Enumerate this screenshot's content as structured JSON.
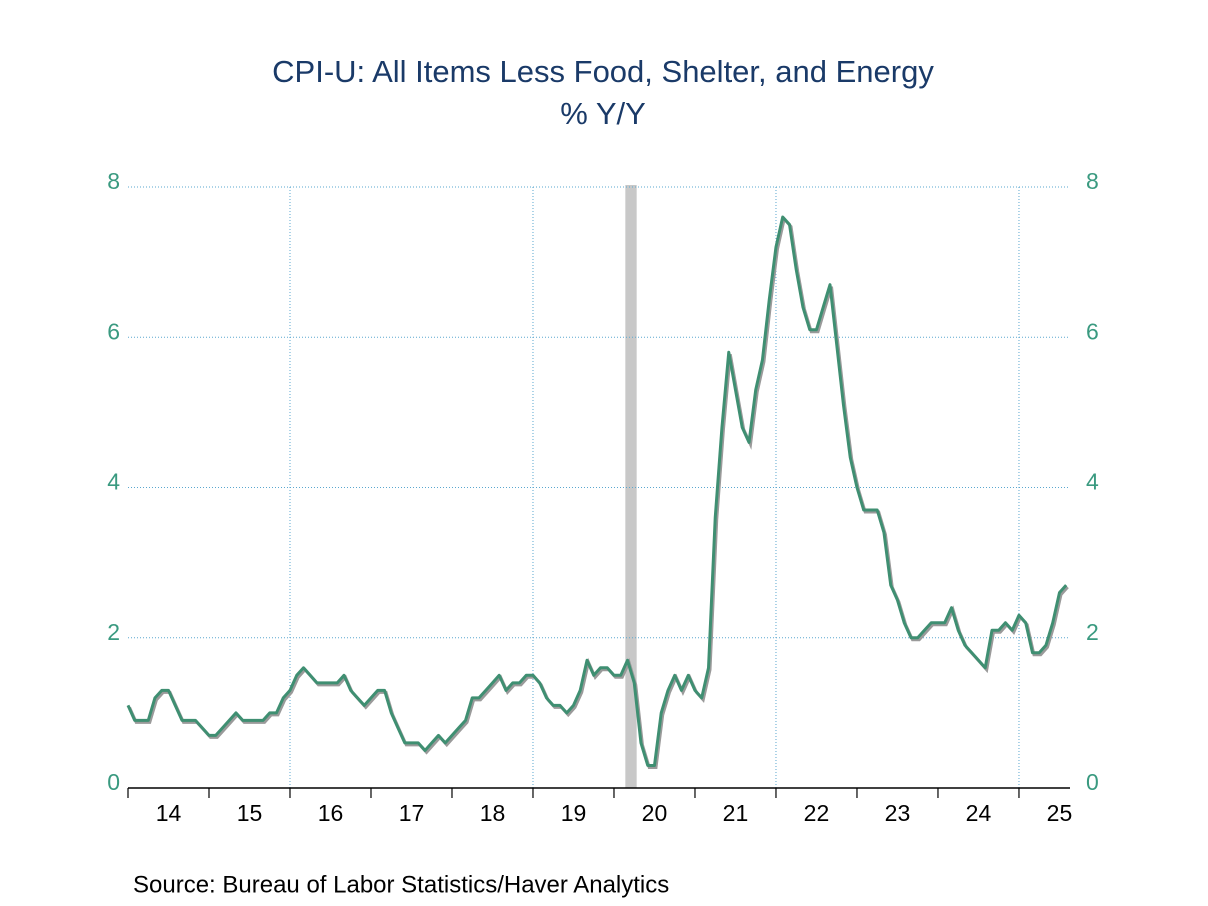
{
  "chart_data": {
    "type": "line",
    "title": "CPI-U: All Items Less Food, Shelter, and Energy",
    "subtitle": "% Y/Y",
    "source": "Source:  Bureau of Labor Statistics/Haver Analytics",
    "ylim": [
      0,
      8
    ],
    "yticks": [
      0,
      2,
      4,
      6,
      8
    ],
    "y2lim": [
      0,
      8
    ],
    "y2ticks": [
      0,
      2,
      4,
      6,
      8
    ],
    "xlim": [
      14,
      25.63
    ],
    "xticks": [
      {
        "value": 14.5,
        "label": "14"
      },
      {
        "value": 15.5,
        "label": "15"
      },
      {
        "value": 16.5,
        "label": "16"
      },
      {
        "value": 17.5,
        "label": "17"
      },
      {
        "value": 18.5,
        "label": "18"
      },
      {
        "value": 19.5,
        "label": "19"
      },
      {
        "value": 20.5,
        "label": "20"
      },
      {
        "value": 21.5,
        "label": "21"
      },
      {
        "value": 22.5,
        "label": "22"
      },
      {
        "value": 23.5,
        "label": "23"
      },
      {
        "value": 24.5,
        "label": "24"
      },
      {
        "value": 25.5,
        "label": "25"
      }
    ],
    "xminor": [
      14,
      15,
      16,
      17,
      18,
      19,
      20,
      21,
      22,
      23,
      24,
      25
    ],
    "xgrid": [
      16,
      19,
      22,
      25
    ],
    "grid": true,
    "recession": [
      20.14,
      20.28
    ],
    "x": [
      14,
      14.083,
      14.167,
      14.25,
      14.333,
      14.417,
      14.5,
      14.583,
      14.667,
      14.75,
      14.833,
      14.917,
      15,
      15.083,
      15.167,
      15.25,
      15.333,
      15.417,
      15.5,
      15.583,
      15.667,
      15.75,
      15.833,
      15.917,
      16,
      16.083,
      16.167,
      16.25,
      16.333,
      16.417,
      16.5,
      16.583,
      16.667,
      16.75,
      16.833,
      16.917,
      17,
      17.083,
      17.167,
      17.25,
      17.333,
      17.417,
      17.5,
      17.583,
      17.667,
      17.75,
      17.833,
      17.917,
      18,
      18.083,
      18.167,
      18.25,
      18.333,
      18.417,
      18.5,
      18.583,
      18.667,
      18.75,
      18.833,
      18.917,
      19,
      19.083,
      19.167,
      19.25,
      19.333,
      19.417,
      19.5,
      19.583,
      19.667,
      19.75,
      19.833,
      19.917,
      20,
      20.083,
      20.167,
      20.25,
      20.333,
      20.417,
      20.5,
      20.583,
      20.667,
      20.75,
      20.833,
      20.917,
      21,
      21.083,
      21.167,
      21.25,
      21.333,
      21.417,
      21.5,
      21.583,
      21.667,
      21.75,
      21.833,
      21.917,
      22,
      22.083,
      22.167,
      22.25,
      22.333,
      22.417,
      22.5,
      22.583,
      22.667,
      22.75,
      22.833,
      22.917,
      23,
      23.083,
      23.167,
      23.25,
      23.333,
      23.417,
      23.5,
      23.583,
      23.667,
      23.75,
      23.833,
      23.917,
      24,
      24.083,
      24.167,
      24.25,
      24.333,
      24.417,
      24.5,
      24.583,
      24.667,
      24.75,
      24.833,
      24.917,
      25,
      25.083,
      25.167,
      25.25,
      25.333,
      25.417,
      25.5,
      25.583
    ],
    "series": [
      {
        "color": "#3f8f72",
        "values": [
          1.1,
          0.9,
          0.9,
          0.9,
          1.2,
          1.3,
          1.3,
          1.1,
          0.9,
          0.9,
          0.9,
          0.8,
          0.7,
          0.7,
          0.8,
          0.9,
          1.0,
          0.9,
          0.9,
          0.9,
          0.9,
          1.0,
          1.0,
          1.2,
          1.3,
          1.5,
          1.6,
          1.5,
          1.4,
          1.4,
          1.4,
          1.4,
          1.5,
          1.3,
          1.2,
          1.1,
          1.2,
          1.3,
          1.3,
          1.0,
          0.8,
          0.6,
          0.6,
          0.6,
          0.5,
          0.6,
          0.7,
          0.6,
          0.7,
          0.8,
          0.9,
          1.2,
          1.2,
          1.3,
          1.4,
          1.5,
          1.3,
          1.4,
          1.4,
          1.5,
          1.5,
          1.4,
          1.2,
          1.1,
          1.1,
          1.0,
          1.1,
          1.3,
          1.7,
          1.5,
          1.6,
          1.6,
          1.5,
          1.5,
          1.7,
          1.4,
          0.6,
          0.3,
          0.3,
          1.0,
          1.3,
          1.5,
          1.3,
          1.5,
          1.3,
          1.2,
          1.6,
          3.6,
          4.8,
          5.8,
          5.3,
          4.8,
          4.6,
          5.3,
          5.7,
          6.5,
          7.2,
          7.6,
          7.5,
          6.9,
          6.4,
          6.1,
          6.1,
          6.4,
          6.7,
          5.9,
          5.1,
          4.4,
          4.0,
          3.7,
          3.7,
          3.7,
          3.4,
          2.7,
          2.5,
          2.2,
          2.0,
          2.0,
          2.1,
          2.2,
          2.2,
          2.2,
          2.4,
          2.1,
          1.9,
          1.8,
          1.7,
          1.6,
          2.1,
          2.1,
          2.2,
          2.1,
          2.3,
          2.2,
          1.8,
          1.8,
          1.9,
          2.2,
          2.6,
          2.7
        ]
      }
    ]
  }
}
